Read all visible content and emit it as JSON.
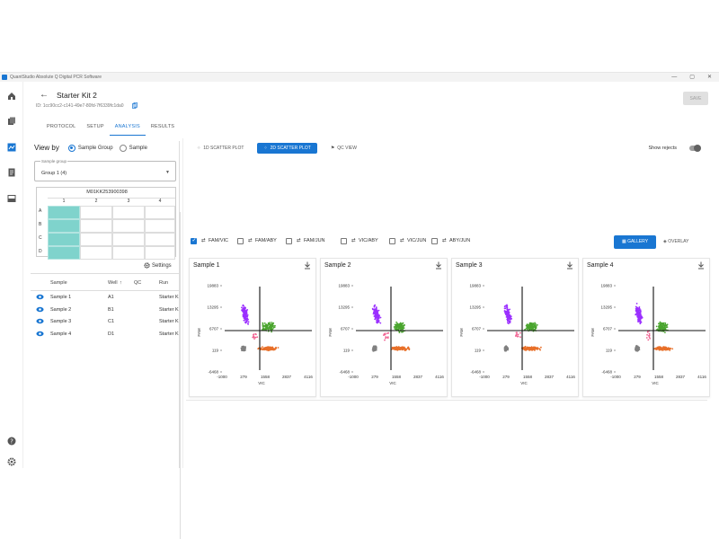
{
  "window": {
    "title": "QuantStudio Absolute Q Digital PCR Software",
    "controls": [
      "—",
      "▢",
      "✕"
    ]
  },
  "rail": {
    "icons": [
      "home-icon",
      "document-icon",
      "analysis-icon",
      "report-icon",
      "instrument-icon",
      "help-icon",
      "settings-icon"
    ]
  },
  "header": {
    "title": "Starter Kit 2",
    "id": "ID: 1cc90cc2-c141-49e7-80fd-7f6339fc1da0",
    "save_label": "SAVE",
    "tabs": [
      {
        "label": "PROTOCOL"
      },
      {
        "label": "SETUP"
      },
      {
        "label": "ANALYSIS"
      },
      {
        "label": "RESULTS"
      }
    ]
  },
  "left": {
    "view_by_label": "View by",
    "option_group": "Sample Group",
    "option_sample": "Sample",
    "select_label": "Sample group",
    "select_value": "Group 1 (4)",
    "plate_id": "M01KK253900398",
    "plate_cols": [
      "1",
      "2",
      "3",
      "4"
    ],
    "plate_rows": [
      "A",
      "B",
      "C",
      "D"
    ],
    "settings_label": "Settings",
    "table_headers": {
      "sample": "Sample",
      "well": "Well",
      "qc": "QC",
      "run": "Run"
    },
    "rows": [
      {
        "sample": "Sample 1",
        "well": "A1",
        "run": "Starter K"
      },
      {
        "sample": "Sample 2",
        "well": "B1",
        "run": "Starter K"
      },
      {
        "sample": "Sample 3",
        "well": "C1",
        "run": "Starter K"
      },
      {
        "sample": "Sample 4",
        "well": "D1",
        "run": "Starter K"
      }
    ]
  },
  "plot_modes": {
    "scatter1d": "1D SCATTER PLOT",
    "scatter2d": "2D SCATTER PLOT",
    "qcview": "QC VIEW",
    "show_rejects": "Show rejects"
  },
  "filters": [
    {
      "label": "FAM/VIC",
      "checked": true
    },
    {
      "label": "FAM/ABY",
      "checked": false
    },
    {
      "label": "FAM/JUN",
      "checked": false
    },
    {
      "label": "VIC/ABY",
      "checked": false
    },
    {
      "label": "VIC/JUN",
      "checked": false
    },
    {
      "label": "ABY/JUN",
      "checked": false
    }
  ],
  "view_buttons": {
    "gallery": "GALLERY",
    "overlay": "OVERLAY"
  },
  "colors": {
    "accent": "#1976d2",
    "fam": "#9b30ff",
    "vic": "#4aa52e",
    "both_neg": "#808080",
    "vic_only": "#e8702a"
  },
  "plots": [
    {
      "title": "Sample 1"
    },
    {
      "title": "Sample 2"
    },
    {
      "title": "Sample 3"
    },
    {
      "title": "Sample 4"
    }
  ],
  "chart_data": [
    {
      "type": "scatter",
      "title": "Sample 1",
      "xlabel": "VIC",
      "ylabel": "FAM",
      "xticks": [
        "-1000",
        "279",
        "1558",
        "2837",
        "4116"
      ],
      "yticks": [
        "19883",
        "13295",
        "6707",
        "119",
        "-6468"
      ]
    },
    {
      "type": "scatter",
      "title": "Sample 2",
      "xlabel": "VIC",
      "ylabel": "FAM",
      "xticks": [
        "-1000",
        "279",
        "1558",
        "2837",
        "4116"
      ],
      "yticks": [
        "19883",
        "13295",
        "6707",
        "119",
        "-6468"
      ]
    },
    {
      "type": "scatter",
      "title": "Sample 3",
      "xlabel": "VIC",
      "ylabel": "FAM",
      "xticks": [
        "-1000",
        "279",
        "1558",
        "2837",
        "4116"
      ],
      "yticks": [
        "19883",
        "13295",
        "6707",
        "119",
        "-6468"
      ]
    },
    {
      "type": "scatter",
      "title": "Sample 4",
      "xlabel": "VIC",
      "ylabel": "FAM",
      "xticks": [
        "-1000",
        "279",
        "1558",
        "2837",
        "4116"
      ],
      "yticks": [
        "19883",
        "13295",
        "6707",
        "119",
        "-6468"
      ]
    }
  ]
}
